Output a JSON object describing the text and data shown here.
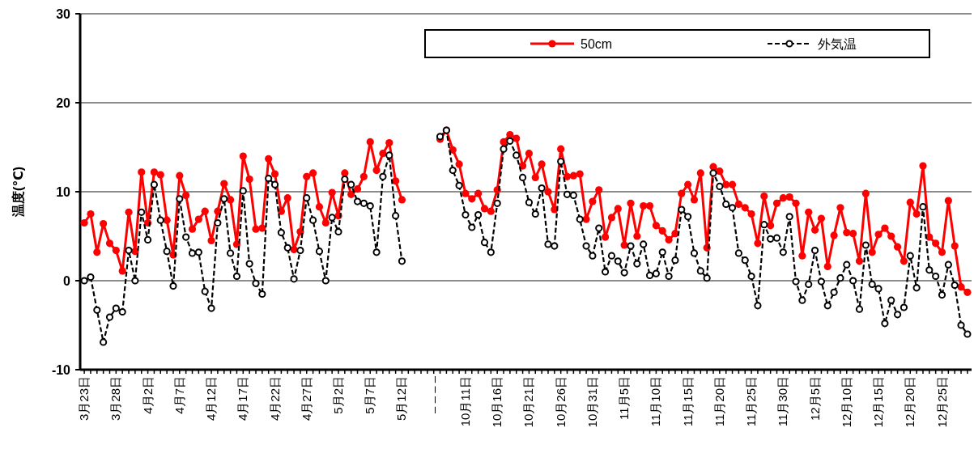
{
  "chart_data": {
    "type": "line",
    "ylabel": "温度(℃)",
    "categories": [
      "3月23日",
      null,
      null,
      null,
      null,
      "3月28日",
      null,
      null,
      null,
      null,
      "4月2日",
      null,
      null,
      null,
      null,
      "4月7日",
      null,
      null,
      null,
      null,
      "4月12日",
      null,
      null,
      null,
      null,
      "4月17日",
      null,
      null,
      null,
      null,
      "4月22日",
      null,
      null,
      null,
      null,
      "4月27日",
      null,
      null,
      null,
      null,
      "5月2日",
      null,
      null,
      null,
      null,
      "5月7日",
      null,
      null,
      null,
      null,
      "5月12日",
      null,
      null,
      null,
      null,
      "– – – –",
      null,
      null,
      null,
      null,
      "10月11日",
      null,
      null,
      null,
      null,
      "10月16日",
      null,
      null,
      null,
      null,
      "10月21日",
      null,
      null,
      null,
      null,
      "10月26日",
      null,
      null,
      null,
      null,
      "10月31日",
      null,
      null,
      null,
      null,
      "11月5日",
      null,
      null,
      null,
      null,
      "11月10日",
      null,
      null,
      null,
      null,
      "11月15日",
      null,
      null,
      null,
      null,
      "11月20日",
      null,
      null,
      null,
      null,
      "11月25日",
      null,
      null,
      null,
      null,
      "11月30日",
      null,
      null,
      null,
      null,
      "12月5日",
      null,
      null,
      null,
      null,
      "12月10日",
      null,
      null,
      null,
      null,
      "12月15日",
      null,
      null,
      null,
      null,
      "12月20日",
      null,
      null,
      null,
      null,
      "12月25日",
      null,
      null,
      null,
      null
    ],
    "series": [
      {
        "name": "50cm",
        "color": "#ff0000",
        "marker": "circle",
        "line_style": "solid",
        "values": [
          6.5,
          7.5,
          3.2,
          6.4,
          4.2,
          3.4,
          1.1,
          7.7,
          3.3,
          12.2,
          6.5,
          12.2,
          11.9,
          6.8,
          2.9,
          11.8,
          9.6,
          5.8,
          6.9,
          7.8,
          4.5,
          7.8,
          10.9,
          9.1,
          4.1,
          14.0,
          11.4,
          5.8,
          5.9,
          13.7,
          12.0,
          7.8,
          9.3,
          3.5,
          5.5,
          11.7,
          12.1,
          8.3,
          6.5,
          9.9,
          7.3,
          12.1,
          9.7,
          10.3,
          11.7,
          15.6,
          12.4,
          14.3,
          15.5,
          11.2,
          9.1,
          null,
          null,
          null,
          null,
          null,
          15.9,
          16.9,
          14.7,
          13.1,
          9.8,
          9.2,
          9.8,
          8.1,
          7.8,
          10.2,
          15.6,
          16.4,
          16.0,
          12.9,
          14.3,
          11.6,
          13.1,
          10.0,
          8.0,
          14.8,
          11.7,
          11.8,
          12.0,
          6.9,
          8.9,
          10.2,
          4.9,
          7.1,
          8.1,
          4.0,
          8.7,
          5.0,
          8.4,
          8.4,
          6.2,
          5.6,
          4.6,
          5.3,
          9.8,
          10.8,
          9.1,
          12.1,
          3.7,
          12.8,
          12.3,
          10.8,
          10.8,
          8.6,
          8.2,
          7.5,
          4.2,
          9.5,
          6.2,
          8.7,
          9.3,
          9.4,
          8.7,
          2.8,
          7.7,
          5.7,
          7.0,
          1.6,
          5.1,
          8.2,
          5.4,
          5.3,
          2.2,
          9.8,
          3.2,
          5.2,
          5.9,
          5.0,
          3.8,
          2.2,
          8.8,
          7.5,
          12.9,
          4.9,
          4.2,
          3.2,
          9.0,
          3.9,
          -0.7,
          -1.3
        ]
      },
      {
        "name": "外気温",
        "color": "#000000",
        "marker": "circle",
        "line_style": "dashed",
        "values": [
          0.0,
          0.4,
          -3.3,
          -6.9,
          -4.1,
          -3.1,
          -3.5,
          3.4,
          0.0,
          7.7,
          4.6,
          10.8,
          6.8,
          3.3,
          -0.6,
          9.2,
          4.9,
          3.1,
          3.2,
          -1.2,
          -3.1,
          6.5,
          9.2,
          3.1,
          0.5,
          10.1,
          1.9,
          -0.3,
          -1.5,
          11.5,
          10.8,
          5.4,
          3.7,
          0.2,
          3.4,
          9.3,
          6.8,
          3.3,
          0.0,
          7.1,
          5.5,
          11.4,
          10.8,
          8.9,
          8.7,
          8.4,
          3.2,
          11.7,
          14.1,
          7.3,
          2.2,
          null,
          null,
          null,
          null,
          null,
          16.2,
          16.9,
          12.4,
          10.7,
          7.4,
          6.0,
          7.4,
          4.3,
          3.2,
          8.7,
          14.8,
          15.7,
          14.1,
          11.6,
          8.8,
          7.5,
          10.4,
          4.1,
          3.9,
          13.4,
          9.7,
          9.6,
          6.9,
          3.9,
          2.8,
          5.9,
          1.0,
          2.8,
          2.2,
          0.9,
          3.9,
          1.9,
          4.1,
          0.6,
          0.8,
          3.2,
          0.5,
          2.3,
          8.0,
          7.2,
          3.1,
          1.1,
          0.3,
          12.1,
          10.6,
          8.6,
          8.2,
          3.1,
          2.3,
          0.5,
          -2.8,
          6.3,
          4.7,
          4.8,
          3.2,
          7.2,
          -0.1,
          -2.2,
          -0.4,
          3.4,
          -0.1,
          -2.8,
          -1.3,
          0.3,
          1.8,
          0.0,
          -3.2,
          4.0,
          -0.4,
          -0.9,
          -4.8,
          -2.2,
          -3.8,
          -3.0,
          2.8,
          -0.8,
          8.3,
          1.2,
          0.5,
          -1.6,
          1.8,
          -0.5,
          -5.0,
          -6.0
        ]
      }
    ],
    "ylim": [
      -10,
      30
    ],
    "yticks": [
      -10,
      0,
      10,
      20,
      30
    ],
    "grid": "y",
    "legend": "top right"
  }
}
